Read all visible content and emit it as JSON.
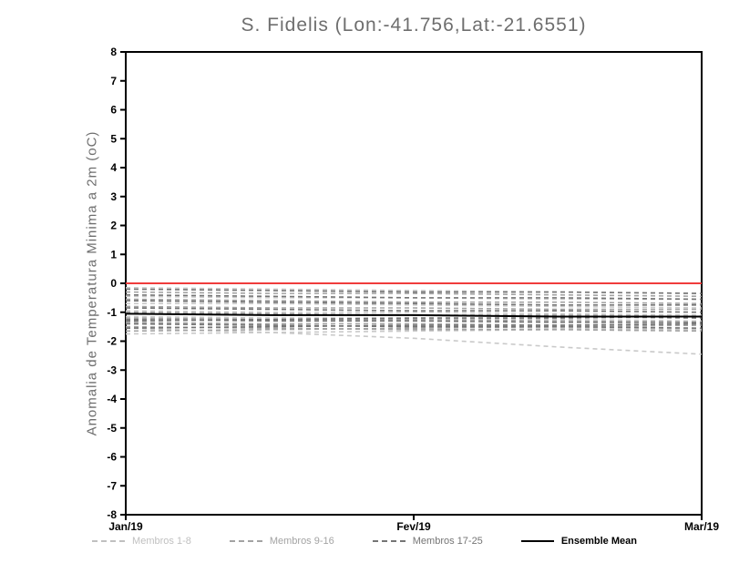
{
  "chart_data": {
    "type": "line",
    "title": "S. Fidelis (Lon:-41.756,Lat:-21.6551)",
    "ylabel": "Anomalia de Temperatura Minima a 2m (oC)",
    "xlabel": "",
    "ylim": [
      -8,
      8
    ],
    "ytick_step": 1,
    "grid": false,
    "legend_position": "bottom",
    "x": [
      0,
      0.25,
      0.5,
      0.75,
      1
    ],
    "x_ticks": [
      {
        "pos": 0,
        "label": "Jan/19"
      },
      {
        "pos": 0.5,
        "label": "Fev/19"
      },
      {
        "pos": 1,
        "label": "Mar/19"
      }
    ],
    "zero_line": {
      "value": 0,
      "color": "#f03c3c"
    },
    "groups": [
      {
        "name": "Membros 1-8",
        "color": "#c9c9c9",
        "style": "dashed",
        "members": [
          [
            -0.15,
            -0.2,
            -0.25,
            -0.3,
            -0.35
          ],
          [
            -0.45,
            -0.5,
            -0.5,
            -0.55,
            -0.55
          ],
          [
            -0.7,
            -0.7,
            -0.75,
            -0.8,
            -0.85
          ],
          [
            -0.95,
            -1.0,
            -1.0,
            -1.05,
            -1.1
          ],
          [
            -1.15,
            -1.2,
            -1.2,
            -1.25,
            -1.3
          ],
          [
            -1.4,
            -1.45,
            -1.5,
            -1.55,
            -1.6
          ],
          [
            -1.55,
            -1.7,
            -1.9,
            -2.2,
            -2.45
          ],
          [
            -1.75,
            -1.7,
            -1.65,
            -1.6,
            -1.55
          ]
        ]
      },
      {
        "name": "Membros 9-16",
        "color": "#a3a3a3",
        "style": "dashed",
        "members": [
          [
            -0.3,
            -0.35,
            -0.35,
            -0.4,
            -0.45
          ],
          [
            -0.55,
            -0.6,
            -0.65,
            -0.65,
            -0.7
          ],
          [
            -0.8,
            -0.85,
            -0.85,
            -0.9,
            -0.9
          ],
          [
            -1.0,
            -1.05,
            -1.1,
            -1.1,
            -1.15
          ],
          [
            -1.2,
            -1.25,
            -1.25,
            -1.3,
            -1.35
          ],
          [
            -1.35,
            -1.4,
            -1.4,
            -1.45,
            -1.4
          ],
          [
            -1.5,
            -1.55,
            -1.6,
            -1.6,
            -1.65
          ],
          [
            -1.65,
            -1.6,
            -1.55,
            -1.5,
            -1.45
          ]
        ]
      },
      {
        "name": "Membros 17-25",
        "color": "#757575",
        "style": "dashed",
        "members": [
          [
            -0.2,
            -0.25,
            -0.3,
            -0.3,
            -0.35
          ],
          [
            -0.4,
            -0.45,
            -0.5,
            -0.5,
            -0.55
          ],
          [
            -0.6,
            -0.65,
            -0.7,
            -0.75,
            -0.75
          ],
          [
            -0.85,
            -0.9,
            -0.95,
            -0.95,
            -1.0
          ],
          [
            -1.05,
            -1.1,
            -1.1,
            -1.15,
            -1.2
          ],
          [
            -1.25,
            -1.3,
            -1.3,
            -1.35,
            -1.35
          ],
          [
            -1.4,
            -1.45,
            -1.5,
            -1.5,
            -1.55
          ],
          [
            -1.55,
            -1.5,
            -1.45,
            -1.45,
            -1.4
          ],
          [
            -1.3,
            -1.25,
            -1.2,
            -1.2,
            -1.15
          ]
        ]
      }
    ],
    "mean": {
      "name": "Ensemble Mean",
      "color": "#000000",
      "style": "solid",
      "values": [
        -1.05,
        -1.1,
        -1.1,
        -1.15,
        -1.15
      ]
    },
    "legend": [
      {
        "label": "Membros 1-8",
        "color": "#c0c0c0",
        "style": "dashed"
      },
      {
        "label": "Membros 9-16",
        "color": "#a3a3a3",
        "style": "dashed"
      },
      {
        "label": "Membros 17-25",
        "color": "#757575",
        "style": "dashed"
      },
      {
        "label": "Ensemble Mean",
        "color": "#000000",
        "style": "solid"
      }
    ]
  }
}
